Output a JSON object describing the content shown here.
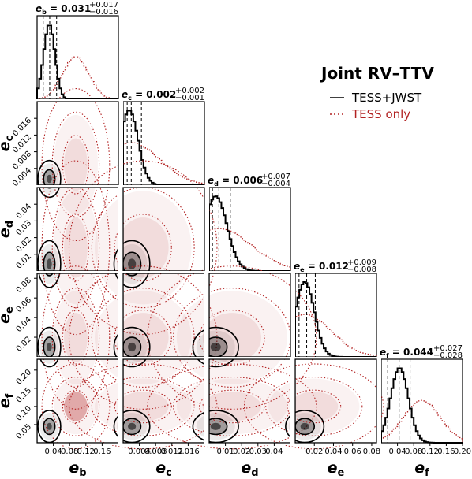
{
  "chart_data": {
    "type": "corner",
    "legend": {
      "title": "Joint RV–TTV",
      "items": [
        {
          "name": "TESS+JWST",
          "color": "#000000",
          "style": "solid"
        },
        {
          "name": "TESS only",
          "color": "#b22222",
          "style": "dotted"
        }
      ]
    },
    "params": [
      {
        "id": "b",
        "main": "e",
        "sub": "b",
        "summary_value": "0.031",
        "plus": "+0.017",
        "minus": "−0.016",
        "range": [
          0,
          0.2
        ],
        "ticks": [
          "0.04",
          "0.08",
          "0.12",
          "0.16"
        ],
        "tick_values": [
          0.04,
          0.08,
          0.12,
          0.16
        ],
        "median": 0.031,
        "lo": 0.015,
        "hi": 0.048,
        "joint": {
          "mu": 0.03,
          "sigma": 0.014
        },
        "tess": {
          "mu": 0.095,
          "sigma": 0.032
        }
      },
      {
        "id": "c",
        "main": "e",
        "sub": "c",
        "summary_value": "0.002",
        "plus": "+0.002",
        "minus": "−0.001",
        "range": [
          0,
          0.02
        ],
        "ticks": [
          "0.004",
          "0.008",
          "0.012",
          "0.016"
        ],
        "tick_values": [
          0.004,
          0.008,
          0.012,
          0.016
        ],
        "median": 0.002,
        "lo": 0.001,
        "hi": 0.0045,
        "joint": {
          "mu": 0.0015,
          "sigma": 0.0022
        },
        "tess": {
          "mu": 0.002,
          "sigma": 0.007
        }
      },
      {
        "id": "d",
        "main": "e",
        "sub": "d",
        "summary_value": "0.006",
        "plus": "+0.007",
        "minus": "−0.004",
        "range": [
          0,
          0.05
        ],
        "ticks": [
          "0.01",
          "0.02",
          "0.03",
          "0.04"
        ],
        "tick_values": [
          0.01,
          0.02,
          0.03,
          0.04
        ],
        "median": 0.006,
        "lo": 0.002,
        "hi": 0.013,
        "joint": {
          "mu": 0.004,
          "sigma": 0.007
        },
        "tess": {
          "mu": 0.006,
          "sigma": 0.02
        }
      },
      {
        "id": "e",
        "main": "e",
        "sub": "e",
        "summary_value": "0.012",
        "plus": "+0.009",
        "minus": "−0.008",
        "range": [
          0,
          0.085
        ],
        "ticks": [
          "0.02",
          "0.04",
          "0.06",
          "0.08"
        ],
        "tick_values": [
          0.02,
          0.04,
          0.06,
          0.08
        ],
        "median": 0.012,
        "lo": 0.004,
        "hi": 0.021,
        "joint": {
          "mu": 0.01,
          "sigma": 0.01
        },
        "tess": {
          "mu": 0.01,
          "sigma": 0.028
        }
      },
      {
        "id": "f",
        "main": "e",
        "sub": "f",
        "summary_value": "0.044",
        "plus": "+0.027",
        "minus": "−0.028",
        "range": [
          0,
          0.2
        ],
        "ticks": [
          "0.04",
          "0.08",
          "0.12",
          "0.16",
          "0.20"
        ],
        "tick_values": [
          0.04,
          0.08,
          0.12,
          0.16,
          0.2
        ],
        "median": 0.044,
        "lo": 0.016,
        "hi": 0.071,
        "joint": {
          "mu": 0.045,
          "sigma": 0.022
        },
        "tess": {
          "mu": 0.1,
          "sigma": 0.045
        }
      }
    ],
    "y_ticks": {
      "c": {
        "labels": [
          "0.004",
          "0.008",
          "0.012",
          "0.016"
        ],
        "values": [
          0.004,
          0.008,
          0.012,
          0.016
        ]
      },
      "d": {
        "labels": [
          "0.01",
          "0.02",
          "0.03",
          "0.04"
        ],
        "values": [
          0.01,
          0.02,
          0.03,
          0.04
        ]
      },
      "e": {
        "labels": [
          "0.02",
          "0.04",
          "0.06",
          "0.08"
        ],
        "values": [
          0.02,
          0.04,
          0.06,
          0.08
        ]
      },
      "f": {
        "labels": [
          "0.05",
          "0.10",
          "0.15",
          "0.20"
        ],
        "values": [
          0.05,
          0.1,
          0.15,
          0.2
        ]
      }
    },
    "f_y_range": [
      0,
      0.23
    ]
  }
}
